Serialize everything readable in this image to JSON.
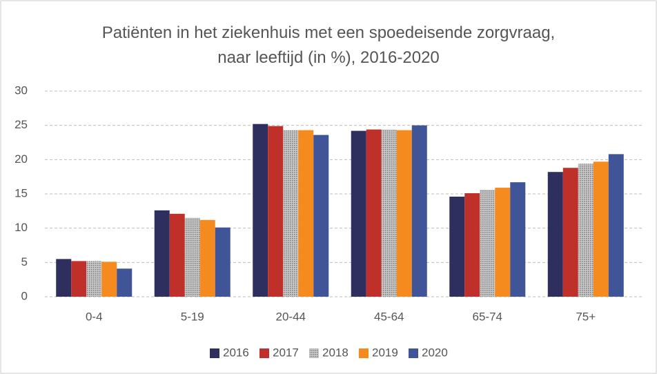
{
  "chart_data": {
    "type": "bar",
    "title": "Patiënten in het ziekenhuis met een spoedeisende zorgvraag, naar leeftijd (in %), 2016-2020",
    "categories": [
      "0-4",
      "5-19",
      "20-44",
      "45-64",
      "65-74",
      "75+"
    ],
    "series": [
      {
        "name": "2016",
        "color": "#2e2f5e",
        "values": [
          5.5,
          12.6,
          25.2,
          24.2,
          14.6,
          18.2
        ]
      },
      {
        "name": "2017",
        "color": "#c0302b",
        "values": [
          5.2,
          12.1,
          24.9,
          24.4,
          15.1,
          18.8
        ]
      },
      {
        "name": "2018",
        "color": "#a9a9a9",
        "values": [
          5.2,
          11.5,
          24.3,
          24.4,
          15.6,
          19.4
        ]
      },
      {
        "name": "2019",
        "color": "#f58a1f",
        "values": [
          5.1,
          11.2,
          24.3,
          24.3,
          15.9,
          19.7
        ]
      },
      {
        "name": "2020",
        "color": "#3f5597",
        "values": [
          4.1,
          10.1,
          23.6,
          25.0,
          16.7,
          20.8
        ]
      }
    ],
    "ylim": [
      0,
      30
    ],
    "yticks": [
      0,
      5,
      10,
      15,
      20,
      25,
      30
    ],
    "grid": true,
    "legend": "bottom"
  }
}
